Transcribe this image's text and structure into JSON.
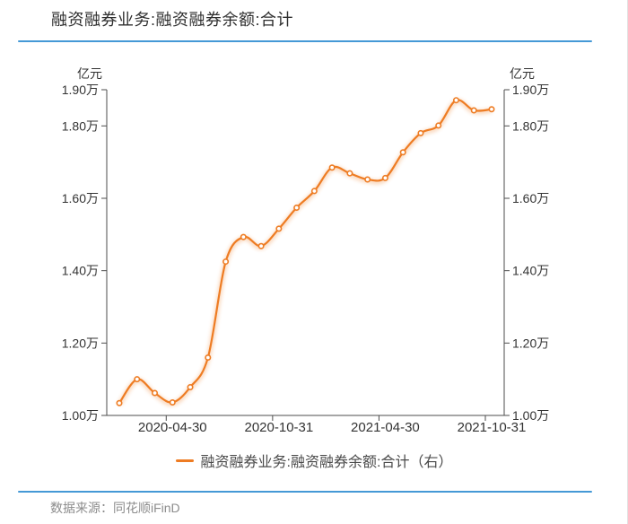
{
  "window": {
    "background": "#ffffff",
    "accent_rule_color": "#4599d6",
    "right_edge_color": "#e2e2e2"
  },
  "header": {
    "title": "融资融券业务:融资融券余额:合计"
  },
  "legend": {
    "label": "融资融券业务:融资融券余额:合计（右）",
    "marker_color": "#ee7c23",
    "position": "bottom"
  },
  "footer": {
    "source": "数据来源：同花顺iFinD"
  },
  "chart_data": {
    "type": "line",
    "title": "融资融券业务:融资融券余额:合计",
    "smooth": true,
    "grid": false,
    "legend_position": "bottom",
    "line_color": "#ee7c23",
    "marker": "circle-white-fill",
    "axis_color": "#4d4d4d",
    "label_color": "#333333",
    "x_axis": {
      "type": "category",
      "tick_labels": [
        "2020-04-30",
        "2020-10-31",
        "2021-04-30",
        "2021-10-31"
      ],
      "tick_indices": [
        3,
        9,
        15,
        21
      ]
    },
    "y_axis": {
      "unit": "亿元",
      "sides": "left-and-right",
      "range_wan": [
        1.0,
        1.9
      ],
      "tick_values_wan": [
        1.0,
        1.2,
        1.4,
        1.6,
        1.8,
        1.9
      ],
      "tick_labels": [
        "1.00万",
        "1.20万",
        "1.40万",
        "1.60万",
        "1.80万",
        "1.90万"
      ]
    },
    "x": [
      "2020-01-31",
      "2020-02-29",
      "2020-03-31",
      "2020-04-30",
      "2020-05-31",
      "2020-06-30",
      "2020-07-31",
      "2020-08-31",
      "2020-09-30",
      "2020-10-31",
      "2020-11-30",
      "2020-12-31",
      "2021-01-31",
      "2021-02-28",
      "2021-03-31",
      "2021-04-30",
      "2021-05-31",
      "2021-06-30",
      "2021-07-31",
      "2021-08-31",
      "2021-09-30",
      "2021-10-31"
    ],
    "series": [
      {
        "name": "融资融券业务:融资融券余额:合计（右）",
        "axis": "right",
        "values_wan_yi_yuan": [
          1.034,
          1.1,
          1.062,
          1.036,
          1.078,
          1.16,
          1.425,
          1.493,
          1.468,
          1.516,
          1.574,
          1.62,
          1.685,
          1.669,
          1.652,
          1.656,
          1.727,
          1.78,
          1.801,
          1.871,
          1.843,
          1.846
        ]
      }
    ]
  }
}
